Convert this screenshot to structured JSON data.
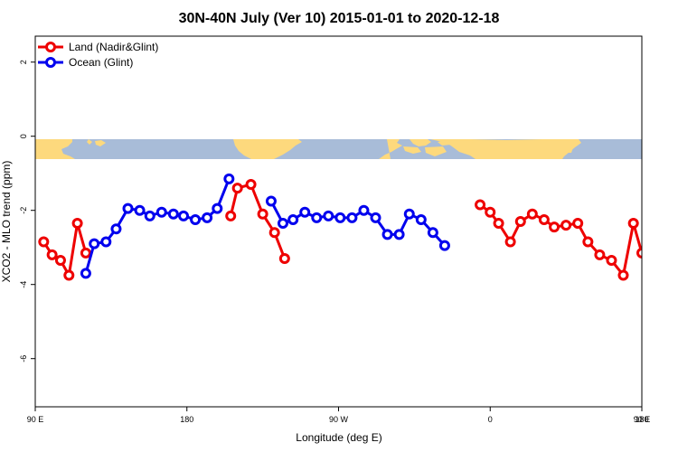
{
  "chart_data": {
    "type": "line",
    "title": "30N-40N July (Ver 10)   2015-01-01 to 2020-12-18",
    "xlabel": "Longitude (deg E)",
    "ylabel": "XCO2 - MLO trend (ppm)",
    "xlim": [
      90,
      450
    ],
    "ylim": [
      -7.3,
      2.7
    ],
    "x_ticks": [
      {
        "value": 90,
        "label": "90 E"
      },
      {
        "value": 180,
        "label": "180"
      },
      {
        "value": 270,
        "label": "90 W"
      },
      {
        "value": 360,
        "label": "0"
      },
      {
        "value": 450,
        "label": "90 E"
      },
      {
        "value": 540,
        "label": "180"
      }
    ],
    "y_ticks": [
      {
        "value": 2,
        "label": "2"
      },
      {
        "value": 0,
        "label": "0"
      },
      {
        "value": -2,
        "label": "-2"
      },
      {
        "value": -4,
        "label": "-4"
      },
      {
        "value": -6,
        "label": "-6"
      }
    ],
    "legend_position": "top-left",
    "series": [
      {
        "name": "Land (Nadir&Glint)",
        "color": "#ee0000",
        "segments": [
          [
            [
              95,
              -2.85
            ],
            [
              100,
              -3.2
            ],
            [
              105,
              -3.35
            ],
            [
              110,
              -3.75
            ],
            [
              115,
              -2.35
            ],
            [
              120,
              -3.15
            ]
          ],
          [
            [
              206,
              -2.15
            ],
            [
              210,
              -1.4
            ],
            [
              218,
              -1.3
            ],
            [
              225,
              -2.1
            ],
            [
              232,
              -2.6
            ],
            [
              238,
              -3.3
            ]
          ],
          [
            [
              354,
              -1.85
            ],
            [
              360,
              -2.05
            ],
            [
              365,
              -2.35
            ],
            [
              372,
              -2.85
            ],
            [
              378,
              -2.3
            ],
            [
              385,
              -2.1
            ],
            [
              392,
              -2.25
            ],
            [
              398,
              -2.45
            ],
            [
              405,
              -2.4
            ],
            [
              412,
              -2.35
            ],
            [
              418,
              -2.85
            ],
            [
              425,
              -3.2
            ],
            [
              432,
              -3.35
            ],
            [
              439,
              -3.75
            ],
            [
              445,
              -2.35
            ],
            [
              450,
              -3.15
            ]
          ]
        ]
      },
      {
        "name": "Ocean (Glint)",
        "color": "#0000ee",
        "segments": [
          [
            [
              120,
              -3.7
            ],
            [
              125,
              -2.9
            ],
            [
              132,
              -2.85
            ],
            [
              138,
              -2.5
            ],
            [
              145,
              -1.95
            ],
            [
              152,
              -2.0
            ],
            [
              158,
              -2.15
            ],
            [
              165,
              -2.05
            ],
            [
              172,
              -2.1
            ],
            [
              178,
              -2.15
            ],
            [
              185,
              -2.25
            ],
            [
              192,
              -2.2
            ],
            [
              198,
              -1.95
            ],
            [
              205,
              -1.15
            ]
          ],
          [
            [
              230,
              -1.75
            ],
            [
              237,
              -2.35
            ],
            [
              243,
              -2.25
            ],
            [
              250,
              -2.05
            ],
            [
              257,
              -2.2
            ],
            [
              264,
              -2.15
            ],
            [
              271,
              -2.2
            ],
            [
              278,
              -2.2
            ],
            [
              285,
              -2.0
            ],
            [
              292,
              -2.2
            ],
            [
              299,
              -2.65
            ],
            [
              306,
              -2.65
            ],
            [
              312,
              -2.1
            ],
            [
              319,
              -2.25
            ],
            [
              326,
              -2.6
            ],
            [
              333,
              -2.95
            ]
          ]
        ]
      }
    ]
  }
}
